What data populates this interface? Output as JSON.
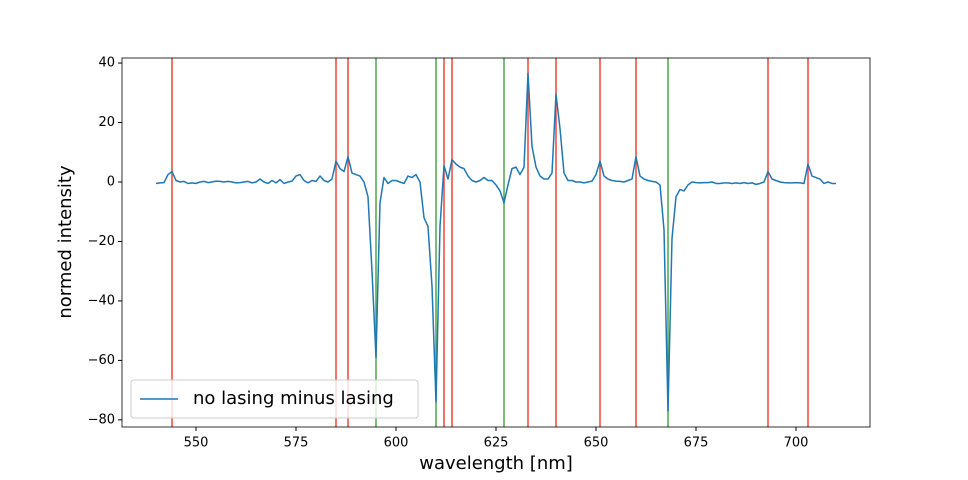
{
  "chart_data": {
    "type": "line",
    "xlabel": "wavelength [nm]",
    "ylabel": "normed intensity",
    "x": [
      540,
      541,
      542,
      543,
      544,
      545,
      546,
      547,
      548,
      549,
      550,
      551,
      552,
      553,
      554,
      555,
      556,
      557,
      558,
      559,
      560,
      561,
      562,
      563,
      564,
      565,
      566,
      567,
      568,
      569,
      570,
      571,
      572,
      573,
      574,
      575,
      576,
      577,
      578,
      579,
      580,
      581,
      582,
      583,
      584,
      585,
      586,
      587,
      588,
      589,
      590,
      591,
      592,
      593,
      594,
      595,
      596,
      597,
      598,
      599,
      600,
      601,
      602,
      603,
      604,
      605,
      606,
      607,
      608,
      609,
      610,
      611,
      612,
      613,
      614,
      615,
      616,
      617,
      618,
      619,
      620,
      621,
      622,
      623,
      624,
      625,
      626,
      627,
      628,
      629,
      630,
      631,
      632,
      633,
      634,
      635,
      636,
      637,
      638,
      639,
      640,
      641,
      642,
      643,
      644,
      645,
      646,
      647,
      648,
      649,
      650,
      651,
      652,
      653,
      654,
      655,
      656,
      657,
      658,
      659,
      660,
      661,
      662,
      663,
      664,
      665,
      666,
      667,
      668,
      669,
      670,
      671,
      672,
      673,
      674,
      675,
      676,
      677,
      678,
      679,
      680,
      681,
      682,
      683,
      684,
      685,
      686,
      687,
      688,
      689,
      690,
      691,
      692,
      693,
      694,
      695,
      696,
      697,
      698,
      699,
      700,
      701,
      702,
      703,
      704,
      705,
      706,
      707,
      708,
      709,
      710
    ],
    "series": [
      {
        "name": "no lasing minus lasing",
        "color": "#1f77b4",
        "values": [
          -0.5,
          -0.3,
          -0.2,
          2.5,
          3.5,
          0.5,
          0,
          0.2,
          -0.5,
          -0.3,
          -0.5,
          0,
          0.2,
          -0.2,
          0,
          0.3,
          0.2,
          0,
          0.2,
          0,
          -0.3,
          -0.2,
          0,
          0.2,
          -0.3,
          0,
          1,
          0,
          -0.5,
          0.5,
          -0.3,
          0.8,
          -0.5,
          0,
          0.3,
          2,
          2.5,
          0.5,
          -0.3,
          0.5,
          0.2,
          2,
          0.5,
          0,
          1,
          7,
          4.5,
          3.5,
          8.5,
          3,
          2.5,
          2,
          0,
          -5,
          -30,
          -59,
          -7,
          1.5,
          -0.5,
          0.5,
          0.5,
          0,
          -0.5,
          2,
          1.5,
          2.5,
          0,
          -12,
          -15,
          -35,
          -74,
          -15,
          5.5,
          1,
          7.5,
          6,
          5,
          4.5,
          2,
          0.5,
          0,
          0.5,
          1.5,
          0.5,
          0.5,
          -1,
          -3,
          -7,
          -1,
          4.5,
          5,
          2.5,
          5,
          36.5,
          12,
          5,
          2,
          1,
          1,
          3,
          29.5,
          18,
          3,
          0.5,
          0.5,
          0,
          0,
          -0.3,
          0,
          0.3,
          2.5,
          7,
          2,
          1,
          0.5,
          0.3,
          0.2,
          0,
          0.5,
          1,
          8.5,
          2,
          1,
          0.5,
          0.2,
          0,
          -1,
          -16,
          -77,
          -19,
          -5,
          -2.5,
          -3,
          -1,
          0,
          -0.2,
          -0.3,
          -0.2,
          -0.2,
          0,
          -0.5,
          -0.5,
          -0.3,
          -0.3,
          -0.5,
          -0.3,
          -0.5,
          -0.2,
          -0.5,
          -0.3,
          -0.8,
          -0.5,
          0,
          3.5,
          1,
          0.5,
          0,
          -0.2,
          -0.3,
          -0.3,
          -0.2,
          -0.3,
          -0.5,
          6,
          2,
          1.5,
          1,
          -0.5,
          0,
          -0.5,
          -0.5
        ]
      }
    ],
    "vlines": [
      {
        "color": "#f0463c",
        "x": [
          544,
          585,
          588,
          612,
          614,
          633,
          640,
          651,
          660,
          693,
          703
        ]
      },
      {
        "color": "#4ca64c",
        "x": [
          595,
          610,
          627,
          668
        ]
      }
    ],
    "xlim": [
      531.5,
      718.5
    ],
    "ylim": [
      -82.4,
      41.7
    ],
    "xticks": [
      550,
      575,
      600,
      625,
      650,
      675,
      700
    ],
    "yticks": [
      {
        "value": -80,
        "label": "−80"
      },
      {
        "value": -60,
        "label": "−60"
      },
      {
        "value": -40,
        "label": "−40"
      },
      {
        "value": -20,
        "label": "−20"
      },
      0,
      20,
      40
    ],
    "legend": "lower left"
  }
}
